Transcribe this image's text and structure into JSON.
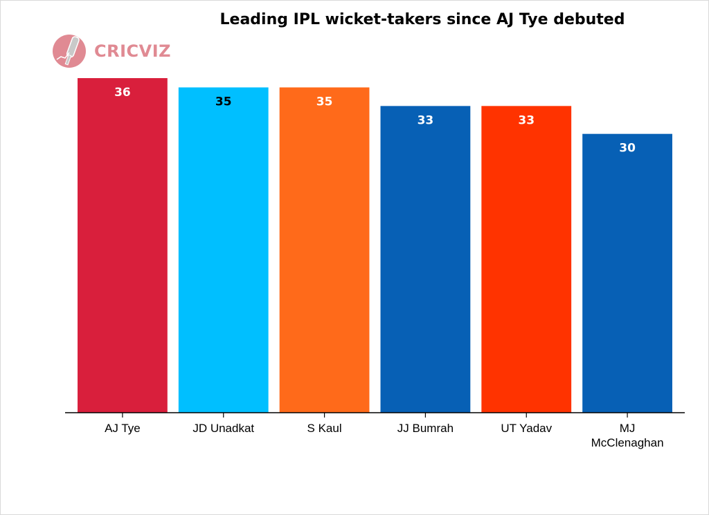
{
  "chart_data": {
    "type": "bar",
    "title": "Leading IPL wicket-takers since AJ Tye debuted",
    "categories": [
      "AJ Tye",
      "JD Unadkat",
      "S Kaul",
      "JJ Bumrah",
      "UT Yadav",
      "MJ McClenaghan"
    ],
    "category_lines": [
      [
        "AJ Tye"
      ],
      [
        "JD Unadkat"
      ],
      [
        "S Kaul"
      ],
      [
        "JJ Bumrah"
      ],
      [
        "UT Yadav"
      ],
      [
        "MJ",
        "McClenaghan"
      ]
    ],
    "values": [
      36,
      35,
      35,
      33,
      33,
      30
    ],
    "colors": [
      "#d91f3c",
      "#00bfff",
      "#ff6a1a",
      "#0760b5",
      "#ff3300",
      "#0760b5"
    ],
    "label_colors": [
      "#ffffff",
      "#000000",
      "#ffffff",
      "#ffffff",
      "#ffffff",
      "#ffffff"
    ],
    "ylim": [
      0,
      36
    ],
    "grid": false,
    "xlabel": "",
    "ylabel": ""
  },
  "branding": {
    "logo_text_light": "CRIC",
    "logo_text_bold": "VIZ",
    "logo_icon": "cricket-bat-ball-icon",
    "logo_color": "#e08a93"
  }
}
